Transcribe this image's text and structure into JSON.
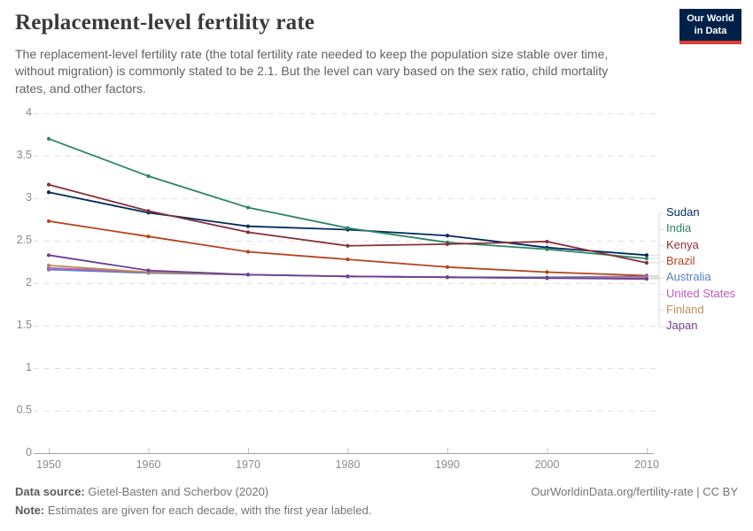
{
  "logo": {
    "line1": "Our World",
    "line2": "in Data",
    "bg": "#002147",
    "stripe": "#dc3e32"
  },
  "header": {
    "title": "Replacement-level fertility rate",
    "subtitle": "The replacement-level fertility rate (the total fertility rate needed to keep the population size stable over time, without migration) is commonly stated to be 2.1. But the level can vary based on the sex ratio, child mortality rates, and other factors."
  },
  "chart_data": {
    "type": "line",
    "title": "Replacement-level fertility rate",
    "x": [
      1950,
      1960,
      1970,
      1980,
      1990,
      2000,
      2010
    ],
    "x_tick_labels": [
      "1950",
      "1960",
      "1970",
      "1980",
      "1990",
      "2000",
      "2010"
    ],
    "y_tick_labels": [
      "0",
      "0.5",
      "1",
      "1.5",
      "2",
      "2.5",
      "3",
      "3.5",
      "4"
    ],
    "ylim": [
      0,
      4
    ],
    "y_gridlines": [
      0.5,
      1,
      1.5,
      2,
      2.5,
      3,
      3.5,
      4
    ],
    "grid": "dashed horizontal",
    "legend_position": "right",
    "series": [
      {
        "name": "Sudan",
        "color": "#00295B",
        "values": [
          3.07,
          2.83,
          2.67,
          2.63,
          2.56,
          2.42,
          2.33
        ]
      },
      {
        "name": "India",
        "color": "#2C8465",
        "values": [
          3.7,
          3.26,
          2.89,
          2.65,
          2.48,
          2.4,
          2.29
        ]
      },
      {
        "name": "Kenya",
        "color": "#883039",
        "values": [
          3.16,
          2.85,
          2.6,
          2.44,
          2.46,
          2.49,
          2.24
        ]
      },
      {
        "name": "Brazil",
        "color": "#B5431D",
        "values": [
          2.73,
          2.55,
          2.37,
          2.28,
          2.19,
          2.13,
          2.09
        ]
      },
      {
        "name": "Australia",
        "color": "#5B7EC4",
        "values": [
          2.16,
          2.12,
          2.1,
          2.08,
          2.07,
          2.07,
          2.08
        ]
      },
      {
        "name": "United States",
        "color": "#BC5EB8",
        "values": [
          2.18,
          2.13,
          2.1,
          2.08,
          2.07,
          2.06,
          2.07
        ]
      },
      {
        "name": "Finland",
        "color": "#BC8E5A",
        "values": [
          2.21,
          2.13,
          2.1,
          2.08,
          2.07,
          2.06,
          2.06
        ]
      },
      {
        "name": "Japan",
        "color": "#6D3E91",
        "values": [
          2.33,
          2.15,
          2.1,
          2.08,
          2.07,
          2.06,
          2.05
        ]
      }
    ]
  },
  "footer": {
    "source_label": "Data source:",
    "source_text": " Gietel-Basten and Scherbov (2020)",
    "license": "OurWorldinData.org/fertility-rate | CC BY",
    "note_label": "Note:",
    "note_text": " Estimates are given for each decade, with the first year labeled."
  }
}
